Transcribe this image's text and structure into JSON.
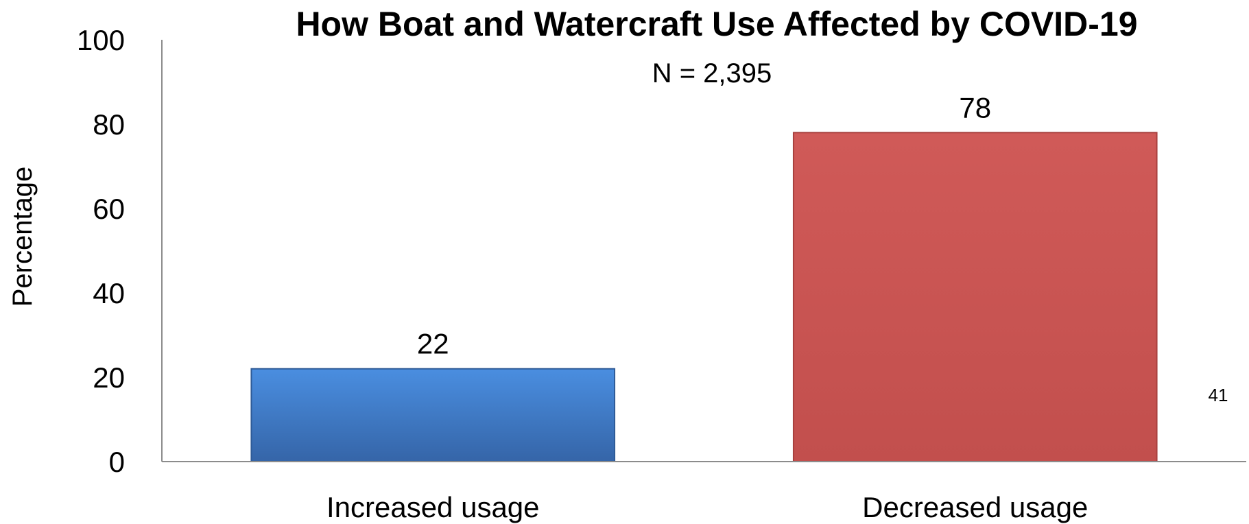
{
  "chart_data": {
    "type": "bar",
    "title": "How Boat and Watercraft Use Affected by COVID-19",
    "subtitle": "N = 2,395",
    "ylabel": "Percentage",
    "xlabel": "",
    "categories": [
      "Increased usage",
      "Decreased usage"
    ],
    "values": [
      22,
      78
    ],
    "data_labels": [
      "22",
      "78"
    ],
    "ylim": [
      0,
      100
    ],
    "y_ticks": [
      0,
      20,
      40,
      60,
      80,
      100
    ],
    "grid": false,
    "legend": "none",
    "colors": [
      "#3f7fcf",
      "#cd5856"
    ]
  },
  "page_number": "41"
}
